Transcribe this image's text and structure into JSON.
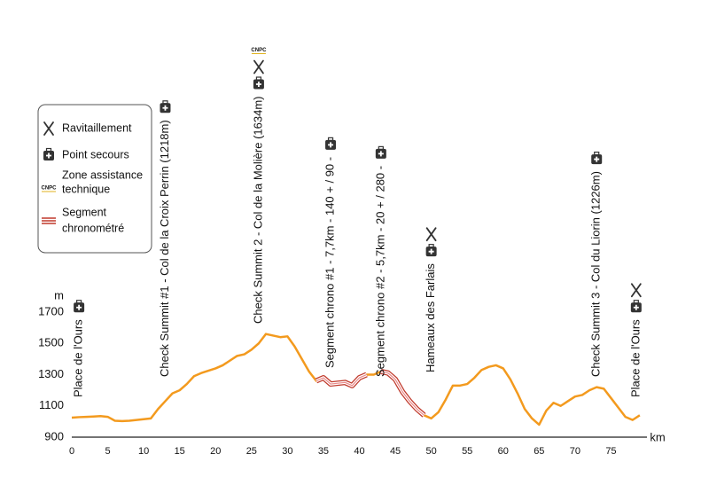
{
  "chart_data": {
    "type": "line",
    "x": [
      0,
      1,
      2,
      3,
      4,
      5,
      6,
      7,
      8,
      9,
      10,
      11,
      12,
      13,
      14,
      15,
      16,
      17,
      18,
      19,
      20,
      21,
      22,
      23,
      24,
      25,
      26,
      27,
      28,
      29,
      30,
      31,
      32,
      33,
      34,
      35,
      36,
      37,
      38,
      39,
      40,
      41,
      42,
      43,
      44,
      45,
      46,
      47,
      48,
      49,
      50,
      51,
      52,
      53,
      54,
      55,
      56,
      57,
      58,
      59,
      60,
      61,
      62,
      63,
      64,
      65,
      66,
      67,
      68,
      69,
      70,
      71,
      72,
      73,
      74,
      75,
      76,
      77,
      78,
      79
    ],
    "values": [
      1025,
      1028,
      1030,
      1032,
      1035,
      1030,
      1005,
      1003,
      1005,
      1010,
      1015,
      1020,
      1080,
      1130,
      1180,
      1200,
      1240,
      1290,
      1310,
      1325,
      1340,
      1360,
      1390,
      1420,
      1430,
      1460,
      1500,
      1560,
      1550,
      1540,
      1545,
      1480,
      1400,
      1320,
      1260,
      1280,
      1240,
      1245,
      1250,
      1230,
      1280,
      1300,
      1300,
      1320,
      1310,
      1270,
      1190,
      1130,
      1080,
      1040,
      1020,
      1060,
      1140,
      1230,
      1230,
      1240,
      1280,
      1330,
      1350,
      1360,
      1340,
      1270,
      1180,
      1080,
      1020,
      980,
      1070,
      1120,
      1100,
      1130,
      1160,
      1170,
      1200,
      1220,
      1210,
      1150,
      1090,
      1030,
      1010,
      1040
    ],
    "color": "#f39a1e",
    "highlight": {
      "color": "#c0392b",
      "values": [
        null,
        null,
        null,
        null,
        null,
        null,
        null,
        null,
        null,
        null,
        null,
        null,
        null,
        null,
        null,
        null,
        null,
        null,
        null,
        null,
        null,
        null,
        null,
        null,
        null,
        null,
        null,
        null,
        null,
        null,
        null,
        null,
        null,
        null,
        1260,
        1280,
        1240,
        1245,
        1250,
        1230,
        1280,
        1300,
        null,
        1320,
        1310,
        1270,
        1190,
        1130,
        1080,
        1040,
        null,
        null,
        null,
        null,
        null,
        null,
        null,
        null,
        null,
        null,
        null,
        null,
        null,
        null,
        null,
        null,
        null,
        null,
        null,
        null,
        null,
        null,
        null,
        null,
        null,
        null,
        null,
        null,
        null,
        null
      ]
    },
    "xlim": [
      0,
      80
    ],
    "xticks": [
      0,
      5,
      10,
      15,
      20,
      25,
      30,
      35,
      40,
      45,
      50,
      55,
      60,
      65,
      70,
      75
    ],
    "ylim": [
      900,
      1700
    ],
    "yticks": [
      900,
      1100,
      1300,
      1500,
      1700
    ],
    "x_label": "km",
    "y_label": "m",
    "logo_text": "CNPC",
    "legend": [
      {
        "icon": "ravito",
        "lines": [
          "Ravitaillement"
        ]
      },
      {
        "icon": "secours",
        "lines": [
          "Point secours"
        ]
      },
      {
        "icon": "cnpc",
        "lines": [
          "Zone assistance",
          "technique"
        ]
      },
      {
        "icon": "segment",
        "lines": [
          "Segment",
          "chronométré"
        ]
      }
    ],
    "annotations": [
      {
        "x": 1,
        "text": "Place de l'Ours",
        "icons": [
          "secours"
        ]
      },
      {
        "x": 13,
        "text": "Check Summit #1 - Col de la Croix Perrin (1218m)",
        "icons": [
          "secours"
        ]
      },
      {
        "x": 26,
        "text": "Check Summit 2 - Col de la Molière (1634m)",
        "icons": [
          "cnpc",
          "ravito",
          "secours"
        ]
      },
      {
        "x": 36,
        "text": "Segment chrono #1 - 7,7km - 140 + / 90 -",
        "icons": [
          "secours"
        ]
      },
      {
        "x": 43,
        "text": "Segment chrono #2 - 5,7km - 20 + / 280 -",
        "icons": [
          "secours"
        ]
      },
      {
        "x": 50,
        "text": "Hameaux des Farlais",
        "icons": [
          "ravito",
          "secours"
        ]
      },
      {
        "x": 73,
        "text": "Check Summit 3 - Col du Liorin (1226m)",
        "icons": [
          "secours"
        ]
      },
      {
        "x": 78.5,
        "text": "Place de l'Ours",
        "icons": [
          "ravito",
          "secours"
        ]
      }
    ]
  }
}
